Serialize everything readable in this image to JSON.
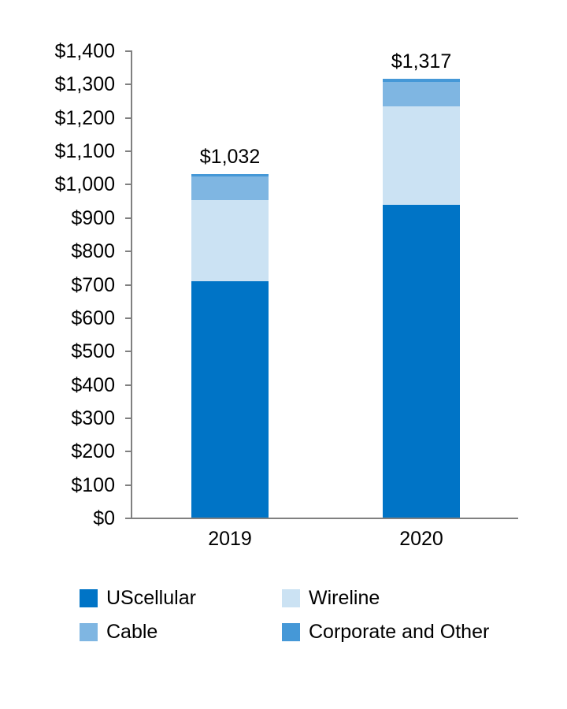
{
  "chart_data": {
    "type": "bar",
    "stacked": true,
    "title": "",
    "xlabel": "",
    "ylabel": "",
    "categories": [
      "2019",
      "2020"
    ],
    "series": [
      {
        "name": "UScellular",
        "color": "#0074C6",
        "values": [
          710,
          939
        ]
      },
      {
        "name": "Wireline",
        "color": "#CBE2F3",
        "values": [
          244,
          295
        ]
      },
      {
        "name": "Cable",
        "color": "#7FB6E2",
        "values": [
          70,
          74
        ]
      },
      {
        "name": "Corporate and Other",
        "color": "#4598D7",
        "values": [
          8,
          9
        ]
      }
    ],
    "totals": {
      "values": [
        1032,
        1317
      ],
      "labels": [
        "$1,032",
        "$1,317"
      ]
    },
    "y_axis": {
      "min": 0,
      "max": 1400,
      "step": 100,
      "tick_labels": [
        "$0",
        "$100",
        "$200",
        "$300",
        "$400",
        "$500",
        "$600",
        "$700",
        "$800",
        "$900",
        "$1,000",
        "$1,100",
        "$1,200",
        "$1,300",
        "$1,400"
      ]
    },
    "legend": {
      "position": "bottom",
      "columns": 2,
      "items": [
        {
          "label": "UScellular",
          "color": "#0074C6"
        },
        {
          "label": "Wireline",
          "color": "#CBE2F3"
        },
        {
          "label": "Cable",
          "color": "#7FB6E2"
        },
        {
          "label": "Corporate and Other",
          "color": "#4598D7"
        }
      ]
    },
    "grid": false,
    "axis_color": "#808080"
  }
}
